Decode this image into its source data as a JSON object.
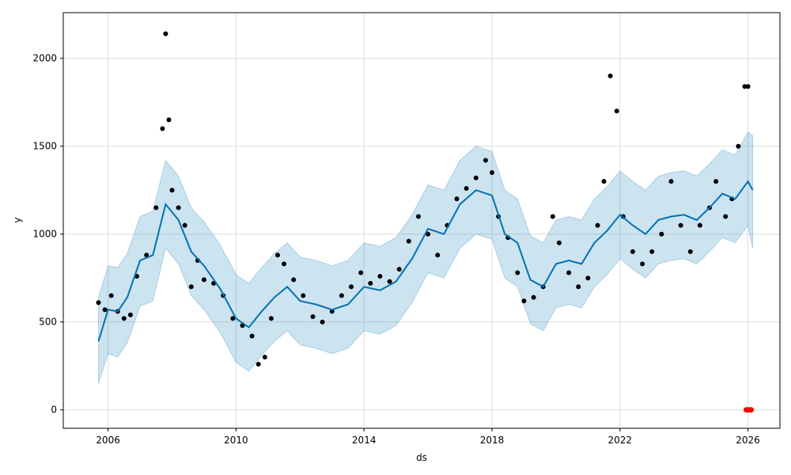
{
  "chart_data": {
    "type": "line",
    "xlabel": "ds",
    "ylabel": "y",
    "xlim": [
      2004.6,
      2027.0
    ],
    "ylim": [
      -105,
      2260
    ],
    "x_ticks": [
      2006,
      2010,
      2014,
      2018,
      2022,
      2026
    ],
    "x_tick_labels": [
      "2006",
      "2010",
      "2014",
      "2018",
      "2022",
      "2026"
    ],
    "y_ticks": [
      0,
      500,
      1000,
      1500,
      2000
    ],
    "y_tick_labels": [
      "0",
      "500",
      "1000",
      "1500",
      "2000"
    ],
    "grid": true,
    "colors": {
      "forecast": "#0072B2",
      "interval": "#0072B2",
      "observed": "#000000",
      "future": "#ff0000"
    },
    "series": [
      {
        "kind": "forecast",
        "x": [
          2005.7,
          2006.0,
          2006.3,
          2006.6,
          2007.0,
          2007.4,
          2007.8,
          2008.2,
          2008.6,
          2009.0,
          2009.5,
          2010.0,
          2010.4,
          2010.8,
          2011.2,
          2011.6,
          2012.0,
          2012.5,
          2013.0,
          2013.5,
          2014.0,
          2014.5,
          2015.0,
          2015.5,
          2016.0,
          2016.5,
          2017.0,
          2017.5,
          2018.0,
          2018.4,
          2018.8,
          2019.2,
          2019.6,
          2020.0,
          2020.4,
          2020.8,
          2021.2,
          2021.6,
          2022.0,
          2022.4,
          2022.8,
          2023.2,
          2023.6,
          2024.0,
          2024.4,
          2024.8,
          2025.2,
          2025.6,
          2026.0,
          2026.15
        ],
        "y": [
          390,
          570,
          560,
          640,
          850,
          880,
          1170,
          1080,
          900,
          820,
          690,
          520,
          470,
          560,
          640,
          700,
          620,
          600,
          570,
          600,
          700,
          680,
          730,
          860,
          1030,
          1000,
          1170,
          1250,
          1220,
          1000,
          950,
          740,
          700,
          830,
          850,
          830,
          950,
          1020,
          1110,
          1050,
          1000,
          1080,
          1100,
          1110,
          1080,
          1150,
          1230,
          1200,
          1300,
          1250
        ]
      },
      {
        "kind": "observed",
        "x": [
          2005.7,
          2005.9,
          2006.1,
          2006.3,
          2006.5,
          2006.7,
          2006.9,
          2007.2,
          2007.5,
          2007.7,
          2007.8,
          2007.9,
          2008.0,
          2008.2,
          2008.4,
          2008.6,
          2008.8,
          2009.0,
          2009.3,
          2009.6,
          2009.9,
          2010.2,
          2010.5,
          2010.7,
          2010.9,
          2011.1,
          2011.3,
          2011.5,
          2011.8,
          2012.1,
          2012.4,
          2012.7,
          2013.0,
          2013.3,
          2013.6,
          2013.9,
          2014.2,
          2014.5,
          2014.8,
          2015.1,
          2015.4,
          2015.7,
          2016.0,
          2016.3,
          2016.6,
          2016.9,
          2017.2,
          2017.5,
          2017.8,
          2018.0,
          2018.2,
          2018.5,
          2018.8,
          2019.0,
          2019.3,
          2019.6,
          2019.9,
          2020.1,
          2020.4,
          2020.7,
          2021.0,
          2021.3,
          2021.5,
          2021.7,
          2021.9,
          2022.1,
          2022.4,
          2022.7,
          2023.0,
          2023.3,
          2023.6,
          2023.9,
          2024.2,
          2024.5,
          2024.8,
          2025.0,
          2025.3,
          2025.5,
          2025.7,
          2025.9,
          2026.0
        ],
        "y": [
          610,
          570,
          650,
          560,
          520,
          540,
          760,
          880,
          1150,
          1600,
          2140,
          1650,
          1250,
          1150,
          1050,
          700,
          850,
          740,
          720,
          650,
          520,
          480,
          420,
          260,
          300,
          520,
          880,
          830,
          740,
          650,
          530,
          500,
          560,
          650,
          700,
          780,
          720,
          760,
          730,
          800,
          960,
          1100,
          1000,
          880,
          1050,
          1200,
          1260,
          1320,
          1420,
          1350,
          1100,
          980,
          780,
          620,
          640,
          700,
          1100,
          950,
          780,
          700,
          750,
          1050,
          1300,
          1900,
          1700,
          1100,
          900,
          830,
          900,
          1000,
          1300,
          1050,
          900,
          1050,
          1150,
          1300,
          1100,
          1200,
          1500,
          1840,
          1840
        ]
      },
      {
        "kind": "future",
        "x": [
          2025.95,
          2026.0,
          2026.05,
          2026.1
        ],
        "y": [
          0,
          0,
          0,
          0
        ]
      }
    ],
    "interval": {
      "x": [
        2005.7,
        2006.0,
        2006.3,
        2006.6,
        2007.0,
        2007.4,
        2007.8,
        2008.2,
        2008.6,
        2009.0,
        2009.5,
        2010.0,
        2010.4,
        2010.8,
        2011.2,
        2011.6,
        2012.0,
        2012.5,
        2013.0,
        2013.5,
        2014.0,
        2014.5,
        2015.0,
        2015.5,
        2016.0,
        2016.5,
        2017.0,
        2017.5,
        2018.0,
        2018.4,
        2018.8,
        2019.2,
        2019.6,
        2020.0,
        2020.4,
        2020.8,
        2021.2,
        2021.6,
        2022.0,
        2022.4,
        2022.8,
        2023.2,
        2023.6,
        2024.0,
        2024.4,
        2024.8,
        2025.2,
        2025.6,
        2026.0,
        2026.15
      ],
      "lower": [
        150,
        320,
        300,
        380,
        590,
        620,
        920,
        830,
        650,
        570,
        440,
        270,
        220,
        310,
        390,
        450,
        370,
        350,
        320,
        350,
        450,
        430,
        480,
        610,
        780,
        750,
        920,
        1000,
        970,
        750,
        700,
        490,
        450,
        580,
        600,
        580,
        700,
        770,
        860,
        800,
        750,
        830,
        850,
        860,
        830,
        900,
        980,
        950,
        1050,
        920
      ],
      "upper": [
        640,
        820,
        810,
        890,
        1100,
        1130,
        1420,
        1330,
        1150,
        1070,
        940,
        770,
        720,
        810,
        890,
        950,
        870,
        850,
        820,
        850,
        950,
        930,
        980,
        1110,
        1280,
        1250,
        1420,
        1500,
        1470,
        1250,
        1200,
        990,
        950,
        1080,
        1100,
        1080,
        1200,
        1270,
        1360,
        1300,
        1250,
        1330,
        1350,
        1360,
        1330,
        1400,
        1480,
        1450,
        1580,
        1560
      ]
    }
  }
}
